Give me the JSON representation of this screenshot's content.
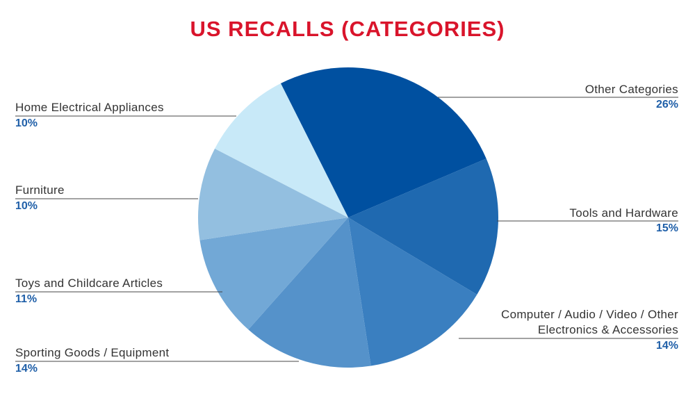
{
  "chart_data": {
    "type": "pie",
    "title": "US RECALLS (CATEGORIES)",
    "categories": [
      "Other Categories",
      "Tools and Hardware",
      "Computer / Audio / Video / Other Electronics & Accessories",
      "Sporting Goods / Equipment",
      "Toys and Childcare Articles",
      "Furniture",
      "Home Electrical Appliances"
    ],
    "values": [
      26,
      15,
      14,
      14,
      11,
      10,
      10
    ],
    "value_labels": [
      "26%",
      "15%",
      "14%",
      "14%",
      "11%",
      "10%",
      "10%"
    ],
    "colors": [
      "#0050a0",
      "#1f69b0",
      "#3a7fc0",
      "#5592ca",
      "#72a8d6",
      "#93bfe0",
      "#c8e9f8"
    ]
  }
}
